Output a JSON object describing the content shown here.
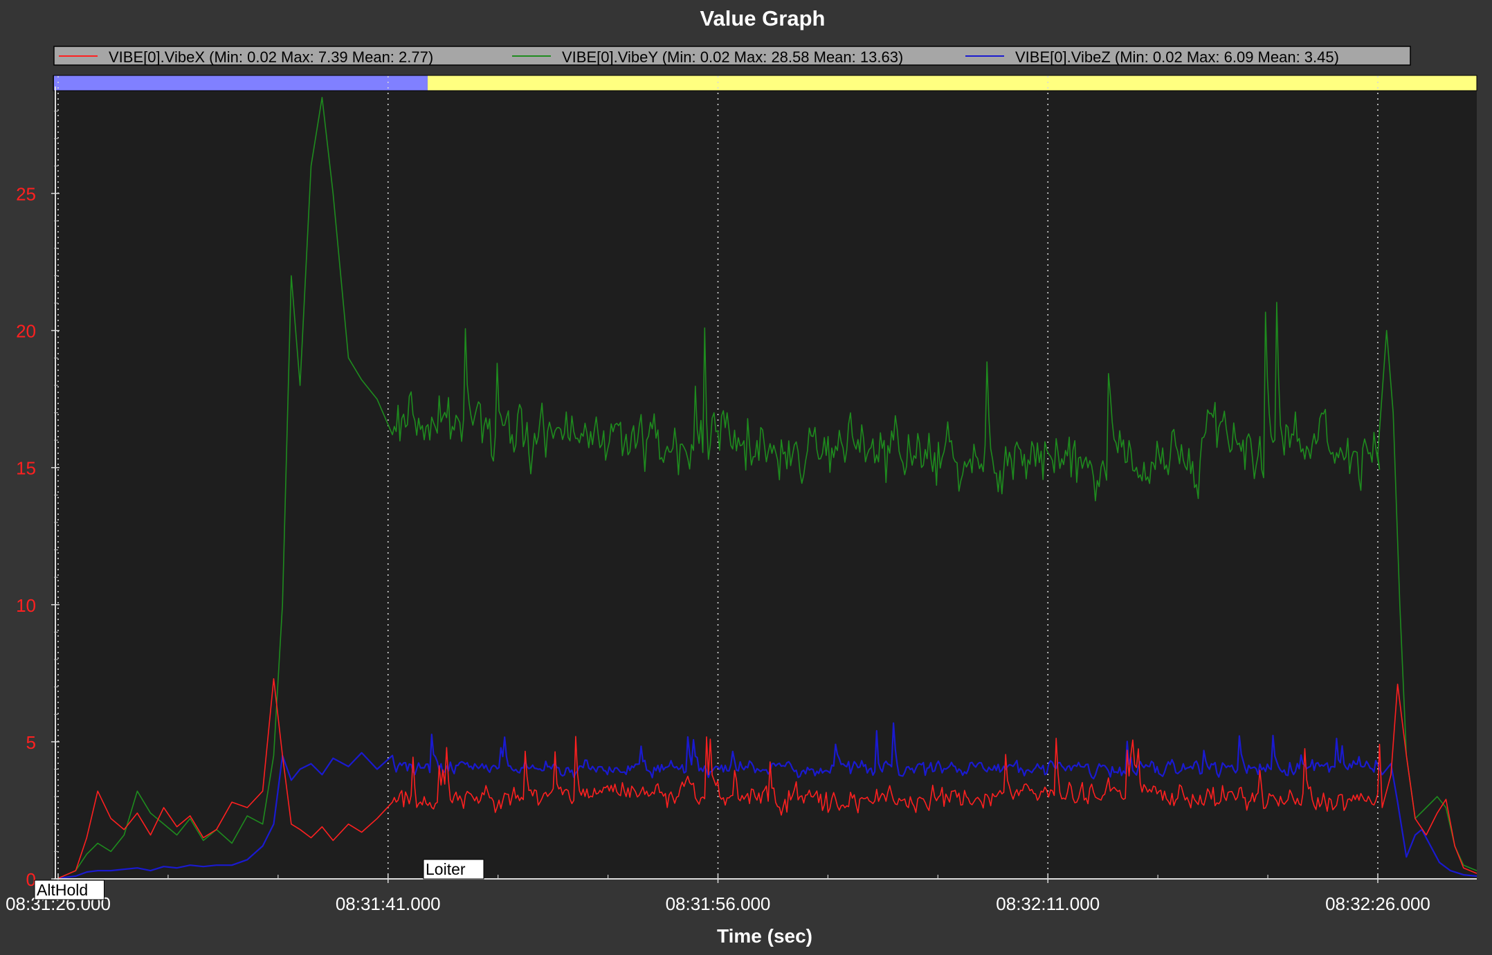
{
  "window": {
    "title": "Value Graph"
  },
  "chart_data": {
    "type": "line",
    "title": "Value Graph",
    "xlabel": "Time (sec)",
    "ylabel": "",
    "x_ticks": [
      "08:31:26.000",
      "08:31:41.000",
      "08:31:56.000",
      "08:32:11.000",
      "08:32:26.000"
    ],
    "x_tick_seconds": [
      0,
      15,
      30,
      45,
      60
    ],
    "xlim_seconds": [
      0,
      64.5
    ],
    "y_ticks": [
      "0",
      "5",
      "10",
      "15",
      "20",
      "25"
    ],
    "ylim": [
      0,
      28.9
    ],
    "grid": "vertical dotted",
    "legend_position": "top",
    "modes": [
      {
        "label": "AltHold",
        "start_s": 0,
        "end_s": 16.8,
        "color": "#8080ff"
      },
      {
        "label": "Loiter",
        "start_s": 16.8,
        "end_s": 64.5,
        "color": "#ffff80"
      }
    ],
    "series": [
      {
        "name": "VIBE[0].VibeX",
        "legend": "VIBE[0].VibeX  (Min: 0.02 Max: 7.39 Mean: 2.77)",
        "color": "#ff2020",
        "points": [
          [
            0,
            0.02
          ],
          [
            0.8,
            0.3
          ],
          [
            1.3,
            1.5
          ],
          [
            1.8,
            3.2
          ],
          [
            2.4,
            2.2
          ],
          [
            3.0,
            1.8
          ],
          [
            3.6,
            2.4
          ],
          [
            4.2,
            1.6
          ],
          [
            4.8,
            2.6
          ],
          [
            5.4,
            1.9
          ],
          [
            6.0,
            2.3
          ],
          [
            6.6,
            1.5
          ],
          [
            7.2,
            1.8
          ],
          [
            7.9,
            2.8
          ],
          [
            8.6,
            2.6
          ],
          [
            9.3,
            3.2
          ],
          [
            9.8,
            7.3
          ],
          [
            10.2,
            4.5
          ],
          [
            10.6,
            2.0
          ],
          [
            11.0,
            1.8
          ],
          [
            11.5,
            1.5
          ],
          [
            12.0,
            1.9
          ],
          [
            12.5,
            1.4
          ],
          [
            13.2,
            2.0
          ],
          [
            13.8,
            1.7
          ],
          [
            14.5,
            2.2
          ],
          [
            15.2,
            2.8
          ]
        ]
      },
      {
        "name": "VIBE[0].VibeY",
        "legend": "VIBE[0].VibeY  (Min: 0.02 Max: 28.58 Mean: 13.63)",
        "color": "#1e8c1e",
        "points": [
          [
            0,
            0.02
          ],
          [
            0.8,
            0.3
          ],
          [
            1.3,
            0.9
          ],
          [
            1.8,
            1.3
          ],
          [
            2.4,
            1.0
          ],
          [
            3.0,
            1.6
          ],
          [
            3.6,
            3.2
          ],
          [
            4.2,
            2.4
          ],
          [
            4.8,
            2.0
          ],
          [
            5.4,
            1.6
          ],
          [
            6.0,
            2.2
          ],
          [
            6.6,
            1.4
          ],
          [
            7.2,
            1.8
          ],
          [
            7.9,
            1.3
          ],
          [
            8.6,
            2.3
          ],
          [
            9.3,
            2.0
          ],
          [
            9.8,
            4.5
          ],
          [
            10.2,
            10.0
          ],
          [
            10.6,
            22.0
          ],
          [
            11.0,
            18.0
          ],
          [
            11.5,
            26.0
          ],
          [
            12.0,
            28.5
          ],
          [
            12.5,
            25.0
          ],
          [
            13.2,
            19.0
          ],
          [
            13.8,
            18.2
          ],
          [
            14.5,
            17.5
          ],
          [
            15.2,
            16.2
          ]
        ]
      },
      {
        "name": "VIBE[0].VibeZ",
        "legend": "VIBE[0].VibeZ  (Min: 0.02 Max: 6.09 Mean: 3.45)",
        "color": "#1a1ad0",
        "points": [
          [
            0,
            0.02
          ],
          [
            0.8,
            0.1
          ],
          [
            1.3,
            0.25
          ],
          [
            1.8,
            0.3
          ],
          [
            2.4,
            0.3
          ],
          [
            3.0,
            0.35
          ],
          [
            3.6,
            0.4
          ],
          [
            4.2,
            0.3
          ],
          [
            4.8,
            0.45
          ],
          [
            5.4,
            0.4
          ],
          [
            6.0,
            0.5
          ],
          [
            6.6,
            0.45
          ],
          [
            7.2,
            0.5
          ],
          [
            7.9,
            0.5
          ],
          [
            8.6,
            0.7
          ],
          [
            9.3,
            1.2
          ],
          [
            9.8,
            2.0
          ],
          [
            10.2,
            4.5
          ],
          [
            10.6,
            3.6
          ],
          [
            11.0,
            4.0
          ],
          [
            11.5,
            4.2
          ],
          [
            12.0,
            3.8
          ],
          [
            12.5,
            4.4
          ],
          [
            13.2,
            4.1
          ],
          [
            13.8,
            4.6
          ],
          [
            14.5,
            4.0
          ],
          [
            15.2,
            4.5
          ]
        ]
      }
    ]
  }
}
